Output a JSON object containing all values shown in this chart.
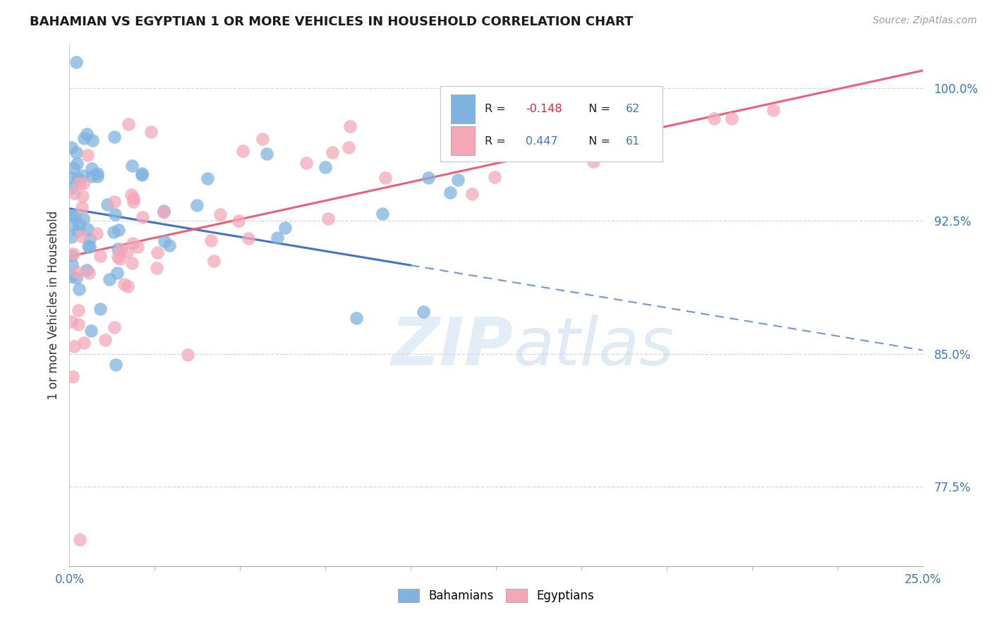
{
  "title": "BAHAMIAN VS EGYPTIAN 1 OR MORE VEHICLES IN HOUSEHOLD CORRELATION CHART",
  "source": "Source: ZipAtlas.com",
  "ylabel": "1 or more Vehicles in Household",
  "xlim": [
    0.0,
    25.0
  ],
  "ylim": [
    73.0,
    102.5
  ],
  "yticks": [
    77.5,
    85.0,
    92.5,
    100.0
  ],
  "ytick_labels": [
    "77.5%",
    "85.0%",
    "92.5%",
    "100.0%"
  ],
  "xtick_left": "0.0%",
  "xtick_right": "25.0%",
  "bahamian_color": "#7fb3e0",
  "egyptian_color": "#f4a7b9",
  "bahamian_line_color": "#4472c4",
  "egyptian_line_color": "#e8607a",
  "watermark_zip": "ZIP",
  "watermark_atlas": "atlas",
  "legend_line1": "R = -0.148   N = 62",
  "legend_line2": "R =  0.447   N = 61",
  "bah_intercept": 93.2,
  "bah_slope": -0.32,
  "bah_solid_end": 10.0,
  "egy_intercept": 90.5,
  "egy_slope": 0.42,
  "seed": 99
}
